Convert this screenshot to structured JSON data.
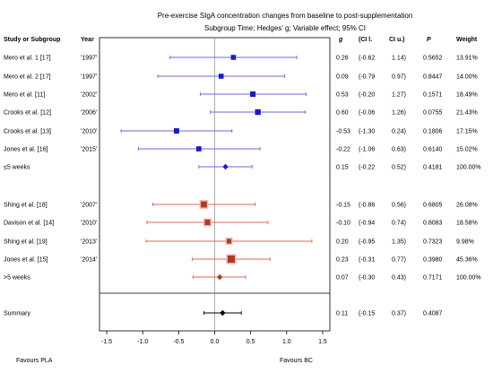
{
  "chart_data": {
    "type": "forest",
    "title": "Pre-exercise SIgA concentration changes from baseline to post-supplementation",
    "subtitle": "Subgroup Time; Hedges' g; Variable effect; 95% CI",
    "headers": {
      "study": "Study or Subgroup",
      "year": "Year",
      "g": "g",
      "cil": "(CI l.",
      "ciu": "CI u.)",
      "p": "P",
      "weight": "Weight"
    },
    "xlim": [
      -1.6,
      1.6
    ],
    "xticks": [
      "-1.5",
      "-1.0",
      "-0.5",
      "0.0",
      "0.5",
      "1.0",
      "1.5"
    ],
    "xtick_values": [
      -1.5,
      -1.0,
      -0.5,
      0.0,
      0.5,
      1.0,
      1.5
    ],
    "favours_left": "Favours PLA",
    "favours_right": "Favours BC",
    "rows": [
      {
        "study": "Mero et al. 1 [17]",
        "year": "'1997'",
        "g": 0.26,
        "cil": -0.62,
        "ciu": 1.14,
        "g_txt": "0.26",
        "cil_txt": "(-0.62",
        "ciu_txt": "1.14)",
        "p": "0.5652",
        "weight": "13.91%",
        "weight_pct": 13.91,
        "kind": "study",
        "group": 1
      },
      {
        "study": "Mero et al. 2 [17]",
        "year": "'1997'",
        "g": 0.09,
        "cil": -0.79,
        "ciu": 0.97,
        "g_txt": "0.09",
        "cil_txt": "(-0.79",
        "ciu_txt": "0.97)",
        "p": "0.8447",
        "weight": "14.00%",
        "weight_pct": 14.0,
        "kind": "study",
        "group": 1
      },
      {
        "study": "Mero et al. [11]",
        "year": "'2002'",
        "g": 0.53,
        "cil": -0.2,
        "ciu": 1.27,
        "g_txt": "0.53",
        "cil_txt": "(-0.20",
        "ciu_txt": "1.27)",
        "p": "0.1571",
        "weight": "18.49%",
        "weight_pct": 18.49,
        "kind": "study",
        "group": 1
      },
      {
        "study": "Crooks et al. [12]",
        "year": "'2006'",
        "g": 0.6,
        "cil": -0.06,
        "ciu": 1.26,
        "g_txt": "0.60",
        "cil_txt": "(-0.06",
        "ciu_txt": "1.26)",
        "p": "0.0755",
        "weight": "21.43%",
        "weight_pct": 21.43,
        "kind": "study",
        "group": 1
      },
      {
        "study": "Crooks et al. [13]",
        "year": "'2010'",
        "g": -0.53,
        "cil": -1.3,
        "ciu": 0.24,
        "g_txt": "-0.53",
        "cil_txt": "(-1.30",
        "ciu_txt": "0.24)",
        "p": "0.1806",
        "weight": "17.15%",
        "weight_pct": 17.15,
        "kind": "study",
        "group": 1
      },
      {
        "study": "Jones et al. [16]",
        "year": "'2015'",
        "g": -0.22,
        "cil": -1.06,
        "ciu": 0.63,
        "g_txt": "-0.22",
        "cil_txt": "(-1.06",
        "ciu_txt": "0.63)",
        "p": "0.6140",
        "weight": "15.02%",
        "weight_pct": 15.02,
        "kind": "study",
        "group": 1
      },
      {
        "study": "≤5 weeks",
        "year": "",
        "g": 0.15,
        "cil": -0.22,
        "ciu": 0.52,
        "g_txt": "0.15",
        "cil_txt": "(-0.22",
        "ciu_txt": "0.52)",
        "p": "0.4181",
        "weight": "100.00%",
        "weight_pct": 100.0,
        "kind": "subtotal",
        "group": 1
      },
      {
        "study": "Shing et al. [18]",
        "year": "'2007'",
        "g": -0.15,
        "cil": -0.86,
        "ciu": 0.56,
        "g_txt": "-0.15",
        "cil_txt": "(-0.86",
        "ciu_txt": "0.56)",
        "p": "0.6805",
        "weight": "26.08%",
        "weight_pct": 26.08,
        "kind": "study",
        "group": 2
      },
      {
        "study": "Davison et al. [14]",
        "year": "'2010'",
        "g": -0.1,
        "cil": -0.94,
        "ciu": 0.74,
        "g_txt": "-0.10",
        "cil_txt": "(-0.94",
        "ciu_txt": "0.74)",
        "p": "0.8083",
        "weight": "18.58%",
        "weight_pct": 18.58,
        "kind": "study",
        "group": 2
      },
      {
        "study": "Shing et al. [19]",
        "year": "'2013'",
        "g": 0.2,
        "cil": -0.95,
        "ciu": 1.35,
        "g_txt": "0.20",
        "cil_txt": "(-0.95",
        "ciu_txt": "1.35)",
        "p": "0.7323",
        "weight": "9.98%",
        "weight_pct": 9.98,
        "kind": "study",
        "group": 2
      },
      {
        "study": "Jones et al. [15]",
        "year": "'2014'",
        "g": 0.23,
        "cil": -0.31,
        "ciu": 0.77,
        "g_txt": "0.23",
        "cil_txt": "(-0.31",
        "ciu_txt": "0.77)",
        "p": "0.3980",
        "weight": "45.36%",
        "weight_pct": 45.36,
        "kind": "study",
        "group": 2
      },
      {
        "study": ">5 weeks",
        "year": "",
        "g": 0.07,
        "cil": -0.3,
        "ciu": 0.43,
        "g_txt": "0.07",
        "cil_txt": "(-0.30",
        "ciu_txt": "0.43)",
        "p": "0.7171",
        "weight": "100.00%",
        "weight_pct": 100.0,
        "kind": "subtotal",
        "group": 2
      },
      {
        "study": "Summary",
        "year": "",
        "g": 0.11,
        "cil": -0.15,
        "ciu": 0.37,
        "g_txt": "0.11",
        "cil_txt": "(-0.15",
        "ciu_txt": "0.37)",
        "p": "0.4087",
        "weight": "",
        "weight_pct": null,
        "kind": "summary",
        "group": 0
      }
    ],
    "colors": {
      "group1": "#1a1acc",
      "group1_ci": "#6b6bdc",
      "group2": "#b03a2a",
      "group2_ci": "#d96a5a",
      "group2_box_halo": "#f3b8b0",
      "summary": "#000000",
      "axis": "#000000",
      "gridline": "#9a9a9a"
    },
    "grid": false
  }
}
